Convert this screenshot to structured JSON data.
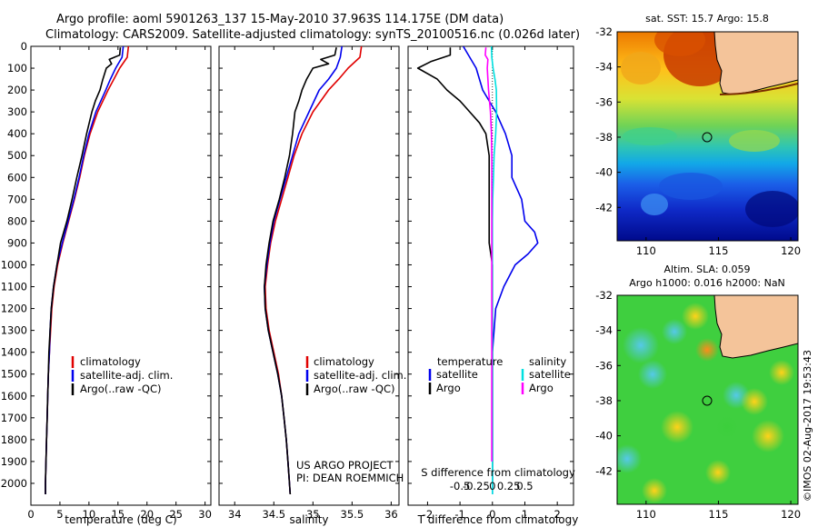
{
  "title": {
    "line1": "Argo profile: aoml 5901263_137 15-May-2010 37.963S 114.175E (DM data)",
    "line2": "Climatology: CARS2009. Satellite-adjusted climatology: synTS_20100516.nc (0.026d later)"
  },
  "colors": {
    "climatology": "#e00000",
    "satellite": "#0000ee",
    "argo": "#000000",
    "salinity_sat": "#00e0e0",
    "salinity_argo": "#ff00ff",
    "land": "#f4c49a"
  },
  "legend_main": {
    "climatology": "climatology",
    "satellite": "satellite-adj. clim.",
    "argo": "Argo(..raw -QC)"
  },
  "legend_diff": {
    "temp_header": "temperature",
    "sal_header": "salinity",
    "satellite": "satellite",
    "argo": "Argo"
  },
  "credit": {
    "line1": "US ARGO PROJECT",
    "line2": "PI: DEAN ROEMMICH"
  },
  "timestamp": "©IMOS 02-Aug-2017 19:53:43",
  "maps": {
    "sst_title": "sat. SST: 15.7 Argo: 15.8",
    "sla_title1": "Altim. SLA: 0.059",
    "sla_title2": "Argo h1000: 0.016 h2000: NaN",
    "lat_ticks": [
      "-32",
      "-34",
      "-36",
      "-38",
      "-40",
      "-42"
    ],
    "lon_ticks": [
      "110",
      "115",
      "120"
    ]
  },
  "chart_data": [
    {
      "type": "line",
      "id": "temperature",
      "xlabel": "temperature (deg C)",
      "ylabel": "",
      "xlim": [
        0,
        31
      ],
      "ylim": [
        2100,
        0
      ],
      "xticks": [
        0,
        5,
        10,
        15,
        20,
        25,
        30
      ],
      "yticks": [
        0,
        100,
        200,
        300,
        400,
        500,
        600,
        700,
        800,
        900,
        1000,
        1100,
        1200,
        1300,
        1400,
        1500,
        1600,
        1700,
        1800,
        1900,
        2000
      ],
      "series": [
        {
          "name": "climatology",
          "color": "#e00000",
          "depth": [
            0,
            50,
            100,
            150,
            200,
            300,
            400,
            500,
            600,
            700,
            800,
            900,
            1000,
            1100,
            1200,
            1300,
            1400,
            1500,
            1600,
            1700,
            1800,
            1900,
            2000,
            2050
          ],
          "value": [
            16.8,
            16.6,
            15.3,
            14.3,
            13.3,
            11.5,
            10.2,
            9.2,
            8.4,
            7.5,
            6.5,
            5.5,
            4.6,
            4.0,
            3.6,
            3.4,
            3.2,
            3.0,
            2.9,
            2.8,
            2.7,
            2.6,
            2.5,
            2.5
          ]
        },
        {
          "name": "satellite-adj. clim.",
          "color": "#0000ee",
          "depth": [
            0,
            50,
            100,
            150,
            200,
            300,
            400,
            500,
            600,
            700,
            800,
            900,
            1000,
            1100,
            1200,
            1300,
            1400,
            1500,
            1600,
            1700,
            1800,
            1900,
            2000,
            2050
          ],
          "value": [
            15.9,
            15.7,
            14.6,
            13.7,
            12.9,
            11.2,
            10.0,
            9.1,
            8.3,
            7.4,
            6.4,
            5.4,
            4.5,
            3.9,
            3.5,
            3.3,
            3.2,
            3.0,
            2.9,
            2.8,
            2.7,
            2.6,
            2.5,
            2.5
          ]
        },
        {
          "name": "Argo(..raw -QC)",
          "color": "#000000",
          "depth": [
            5,
            40,
            60,
            80,
            100,
            150,
            200,
            250,
            300,
            400,
            500,
            600,
            700,
            800,
            900,
            1000,
            1100,
            1200,
            1300,
            1400,
            1500,
            1600,
            1700,
            1800,
            1900,
            2000,
            2050
          ],
          "value": [
            15.4,
            15.3,
            13.5,
            13.9,
            13.0,
            12.4,
            11.9,
            11.1,
            10.5,
            9.6,
            8.8,
            7.9,
            7.1,
            6.2,
            5.1,
            4.5,
            3.9,
            3.5,
            3.3,
            3.1,
            3.0,
            2.9,
            2.8,
            2.7,
            2.6,
            2.5,
            2.5
          ]
        }
      ]
    },
    {
      "type": "line",
      "id": "salinity",
      "xlabel": "salinity",
      "ylabel": "",
      "xlim": [
        33.8,
        36.1
      ],
      "ylim": [
        2100,
        0
      ],
      "xticks": [
        34,
        34.5,
        35,
        35.5,
        36
      ],
      "series": [
        {
          "name": "climatology",
          "color": "#e00000",
          "depth": [
            0,
            50,
            100,
            150,
            200,
            300,
            400,
            500,
            600,
            700,
            800,
            900,
            1000,
            1100,
            1200,
            1300,
            1400,
            1500,
            1600,
            1700,
            1800,
            1900,
            2000,
            2050
          ],
          "value": [
            35.62,
            35.6,
            35.45,
            35.33,
            35.2,
            35.0,
            34.86,
            34.76,
            34.68,
            34.6,
            34.52,
            34.46,
            34.42,
            34.39,
            34.4,
            34.44,
            34.5,
            34.56,
            34.6,
            34.63,
            34.66,
            34.68,
            34.7,
            34.71
          ]
        },
        {
          "name": "satellite-adj. clim.",
          "color": "#0000ee",
          "depth": [
            0,
            50,
            100,
            150,
            200,
            300,
            400,
            500,
            600,
            700,
            800,
            900,
            1000,
            1100,
            1200,
            1300,
            1400,
            1500,
            1600,
            1700,
            1800,
            1900,
            2000,
            2050
          ],
          "value": [
            35.37,
            35.35,
            35.3,
            35.2,
            35.08,
            34.95,
            34.82,
            34.74,
            34.66,
            34.58,
            34.5,
            34.45,
            34.41,
            34.38,
            34.39,
            34.43,
            34.49,
            34.55,
            34.6,
            34.63,
            34.66,
            34.68,
            34.7,
            34.71
          ]
        },
        {
          "name": "Argo(..raw -QC)",
          "color": "#000000",
          "depth": [
            5,
            40,
            60,
            80,
            100,
            150,
            200,
            250,
            300,
            400,
            500,
            600,
            700,
            800,
            900,
            1000,
            1100,
            1200,
            1300,
            1400,
            1500,
            1600,
            1700,
            1800,
            1900,
            2000,
            2050
          ],
          "value": [
            35.3,
            35.28,
            35.1,
            35.2,
            35.0,
            34.92,
            34.86,
            34.82,
            34.77,
            34.74,
            34.7,
            34.64,
            34.57,
            34.49,
            34.44,
            34.4,
            34.38,
            34.39,
            34.43,
            34.49,
            34.55,
            34.6,
            34.63,
            34.66,
            34.68,
            34.7,
            34.71
          ]
        }
      ]
    },
    {
      "type": "line",
      "id": "difference",
      "xlabel": "T difference from climatology",
      "xlabel_top": "S difference from climatology",
      "xlim": [
        -2.6,
        2.5
      ],
      "ylim": [
        2100,
        0
      ],
      "xticks": [
        -2,
        -1,
        0,
        1,
        2
      ],
      "secondary_xticks": [
        "-0.5",
        "-0.25",
        "0",
        "0.25",
        "0.5"
      ],
      "series": [
        {
          "name": "temperature satellite",
          "color": "#0000ee",
          "depth": [
            0,
            50,
            100,
            150,
            200,
            300,
            400,
            500,
            600,
            700,
            800,
            850,
            900,
            950,
            1000,
            1100,
            1200,
            1300,
            1400,
            1500,
            1600,
            1700,
            1800,
            1900,
            2000,
            2050
          ],
          "value": [
            -0.9,
            -0.7,
            -0.5,
            -0.4,
            -0.3,
            0.1,
            0.4,
            0.6,
            0.6,
            0.9,
            1.0,
            1.3,
            1.4,
            1.1,
            0.7,
            0.35,
            0.1,
            0.05,
            0.0,
            0.0,
            0.0,
            0.0,
            0.0,
            0.0,
            0.0,
            0.0
          ]
        },
        {
          "name": "temperature Argo",
          "color": "#000000",
          "depth": [
            5,
            40,
            70,
            100,
            150,
            200,
            250,
            300,
            350,
            400,
            500,
            600,
            700,
            800,
            900,
            1000,
            1100,
            1200,
            1400,
            1600,
            1800,
            2000
          ],
          "value": [
            -1.3,
            -1.3,
            -1.9,
            -2.3,
            -1.7,
            -1.4,
            -1.0,
            -0.7,
            -0.4,
            -0.2,
            -0.1,
            -0.1,
            -0.1,
            -0.1,
            -0.1,
            0.0,
            0.0,
            0.0,
            0.0,
            0.0,
            0.0,
            0.0
          ]
        },
        {
          "name": "salinity satellite",
          "color": "#00e0e0",
          "depth": [
            0,
            50,
            100,
            150,
            200,
            300,
            400,
            500,
            600,
            700,
            800,
            900,
            1000,
            1200,
            1400,
            1600,
            1800,
            2000,
            2050
          ],
          "value": [
            -0.03,
            -0.02,
            0.02,
            0.08,
            0.12,
            0.13,
            0.1,
            0.05,
            0.03,
            0.01,
            0.0,
            0.0,
            0.0,
            0.0,
            0.0,
            0.0,
            0.0,
            0.0,
            0.0
          ]
        },
        {
          "name": "salinity Argo",
          "color": "#ff00ff",
          "depth": [
            5,
            40,
            60,
            100,
            150,
            200,
            300,
            400,
            500,
            600,
            800,
            1000,
            1200,
            1400,
            1600,
            1800,
            1900
          ],
          "value": [
            -0.2,
            -0.22,
            -0.14,
            -0.16,
            -0.14,
            -0.12,
            -0.06,
            -0.03,
            -0.02,
            -0.02,
            -0.02,
            -0.02,
            -0.02,
            -0.02,
            -0.02,
            -0.02,
            -0.02
          ]
        }
      ]
    }
  ]
}
